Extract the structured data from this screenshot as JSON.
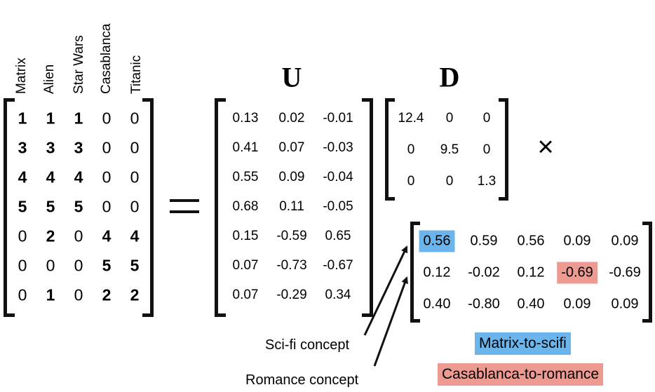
{
  "ratings_matrix": {
    "movies": [
      "Matrix",
      "Alien",
      "Star Wars",
      "Casablanca",
      "Titanic"
    ],
    "rows": [
      [
        "1",
        "1",
        "1",
        "0",
        "0"
      ],
      [
        "3",
        "3",
        "3",
        "0",
        "0"
      ],
      [
        "4",
        "4",
        "4",
        "0",
        "0"
      ],
      [
        "5",
        "5",
        "5",
        "0",
        "0"
      ],
      [
        "0",
        "2",
        "0",
        "4",
        "4"
      ],
      [
        "0",
        "0",
        "0",
        "5",
        "5"
      ],
      [
        "0",
        "1",
        "0",
        "2",
        "2"
      ]
    ]
  },
  "equals_sign": "=",
  "u_matrix": {
    "title": "U",
    "rows": [
      [
        "0.13",
        "0.02",
        "-0.01"
      ],
      [
        "0.41",
        "0.07",
        "-0.03"
      ],
      [
        "0.55",
        "0.09",
        "-0.04"
      ],
      [
        "0.68",
        "0.11",
        "-0.05"
      ],
      [
        "0.15",
        "-0.59",
        "0.65"
      ],
      [
        "0.07",
        "-0.73",
        "-0.67"
      ],
      [
        "0.07",
        "-0.29",
        "0.34"
      ]
    ]
  },
  "d_matrix": {
    "title": "D",
    "rows": [
      [
        "12.4",
        "0",
        "0"
      ],
      [
        "0",
        "9.5",
        "0"
      ],
      [
        "0",
        "0",
        "1.3"
      ]
    ]
  },
  "times_sign": "×",
  "v_matrix": {
    "rows": [
      [
        "0.56",
        "0.59",
        "0.56",
        "0.09",
        "0.09"
      ],
      [
        "0.12",
        "-0.02",
        "0.12",
        "-0.69",
        "-0.69"
      ],
      [
        "0.40",
        "-0.80",
        "0.40",
        "0.09",
        "0.09"
      ]
    ]
  },
  "annotations": {
    "scifi_concept": "Sci-fi concept",
    "romance_concept": "Romance concept",
    "matrix_to_scifi": "Matrix-to-scifi",
    "casablanca_to_romance": "Casablanca-to-romance"
  },
  "colors": {
    "blue_highlight": "#6cb4ec",
    "red_highlight": "#ec9a92",
    "ink": "#111111"
  }
}
